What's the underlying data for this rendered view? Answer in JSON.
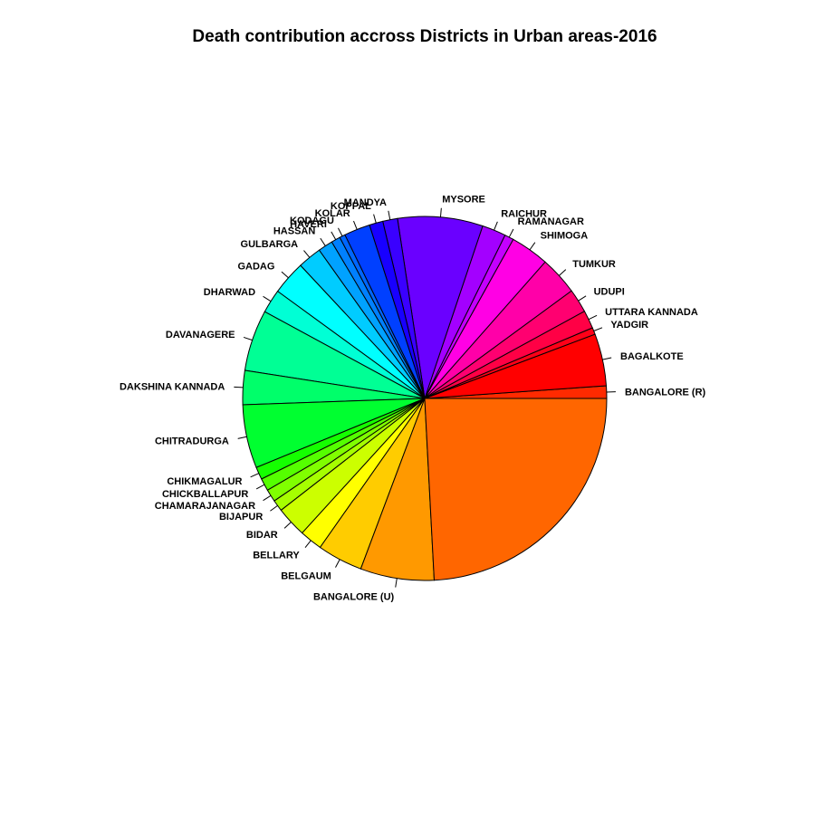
{
  "chart_data": {
    "type": "pie",
    "title": "Death contribution accross Districts in Urban areas-2016",
    "start_angle_deg": 0,
    "direction": "counterclockwise",
    "legend": "none",
    "slices": [
      {
        "label": "BANGALORE (R)",
        "value": 1.1,
        "color": "#FF2A00"
      },
      {
        "label": "BAGALKOTE",
        "value": 4.6,
        "color": "#FF0000"
      },
      {
        "label": "YADGIR",
        "value": 0.6,
        "color": "#FF0018"
      },
      {
        "label": "UTTARA KANNADA",
        "value": 1.6,
        "color": "#FF0045"
      },
      {
        "label": "UDUPI",
        "value": 2.1,
        "color": "#FF0070"
      },
      {
        "label": "TUMKUR",
        "value": 3.4,
        "color": "#FF00A8"
      },
      {
        "label": "SHIMOGA",
        "value": 3.4,
        "color": "#FF00E4"
      },
      {
        "label": "RAMANAGAR",
        "value": 0.8,
        "color": "#C400FF"
      },
      {
        "label": "RAICHUR",
        "value": 2.1,
        "color": "#A300FF"
      },
      {
        "label": "MYSORE",
        "value": 7.5,
        "color": "#6A00FF"
      },
      {
        "label": "MANDYA",
        "value": 1.3,
        "color": "#3A00FF"
      },
      {
        "label": "KOPPAL",
        "value": 1.2,
        "color": "#1800FF"
      },
      {
        "label": "KOLAR",
        "value": 2.3,
        "color": "#0040FF"
      },
      {
        "label": "KODAGU",
        "value": 0.5,
        "color": "#0066FF"
      },
      {
        "label": "HAVERI",
        "value": 0.8,
        "color": "#0080FF"
      },
      {
        "label": "HASSAN",
        "value": 1.3,
        "color": "#00A2FF"
      },
      {
        "label": "GULBARGA",
        "value": 2.1,
        "color": "#00CCFF"
      },
      {
        "label": "GADAG",
        "value": 3.0,
        "color": "#00FFFF"
      },
      {
        "label": "DHARWAD",
        "value": 2.1,
        "color": "#00FFD5"
      },
      {
        "label": "DAVANAGERE",
        "value": 5.4,
        "color": "#00FF95"
      },
      {
        "label": "DAKSHINA KANNADA",
        "value": 3.0,
        "color": "#00FF6A"
      },
      {
        "label": "CHITRADURGA",
        "value": 5.6,
        "color": "#00FF30"
      },
      {
        "label": "CHIKMAGALUR",
        "value": 1.1,
        "color": "#15FF00"
      },
      {
        "label": "CHICKBALLAPUR",
        "value": 1.1,
        "color": "#55FF00"
      },
      {
        "label": "CHAMARAJANAGAR",
        "value": 1.1,
        "color": "#80FF00"
      },
      {
        "label": "BIJAPUR",
        "value": 1.0,
        "color": "#A6FF00"
      },
      {
        "label": "BIDAR",
        "value": 2.7,
        "color": "#CCFF00"
      },
      {
        "label": "BELLARY",
        "value": 2.0,
        "color": "#FFFF00"
      },
      {
        "label": "BELGAUM",
        "value": 4.0,
        "color": "#FFCC00"
      },
      {
        "label": "BANGALORE (U)",
        "value": 6.5,
        "color": "#FF9900"
      },
      {
        "label": "",
        "value": 24.0,
        "color": "#FF6600"
      }
    ]
  }
}
